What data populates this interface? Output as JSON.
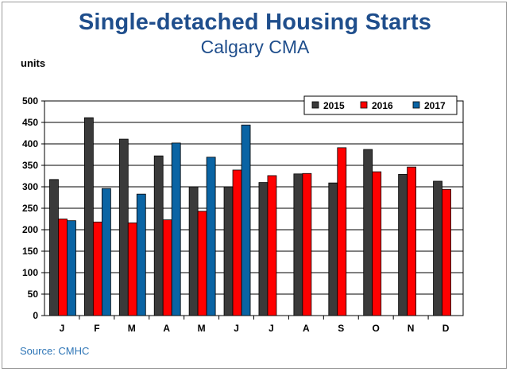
{
  "header": {
    "title": "Single-detached Housing Starts",
    "subtitle": "Calgary CMA",
    "units_label": "units",
    "source": "Source: CMHC"
  },
  "colors": {
    "title": "#1f4e8c",
    "source": "#2e75b6",
    "series_2015": "#3a3a3a",
    "series_2016": "#ff0000",
    "series_2017": "#0a64a4"
  },
  "chart_data": {
    "type": "bar",
    "title": "Single-detached Housing Starts",
    "subtitle": "Calgary CMA",
    "xlabel": "",
    "ylabel": "units",
    "ylim": [
      0,
      500
    ],
    "yticks": [
      0,
      50,
      100,
      150,
      200,
      250,
      300,
      350,
      400,
      450,
      500
    ],
    "grid": true,
    "legend_position": "top-right",
    "categories": [
      "J",
      "F",
      "M",
      "A",
      "M",
      "J",
      "J",
      "A",
      "S",
      "O",
      "N",
      "D"
    ],
    "series": [
      {
        "name": "2015",
        "color": "#3a3a3a",
        "values": [
          317,
          461,
          411,
          372,
          300,
          300,
          310,
          330,
          309,
          387,
          329,
          313
        ]
      },
      {
        "name": "2016",
        "color": "#ff0000",
        "values": [
          225,
          218,
          216,
          223,
          243,
          339,
          326,
          331,
          391,
          335,
          346,
          294
        ]
      },
      {
        "name": "2017",
        "color": "#0a64a4",
        "values": [
          221,
          296,
          283,
          402,
          369,
          444,
          null,
          null,
          null,
          null,
          null,
          null
        ]
      }
    ]
  }
}
